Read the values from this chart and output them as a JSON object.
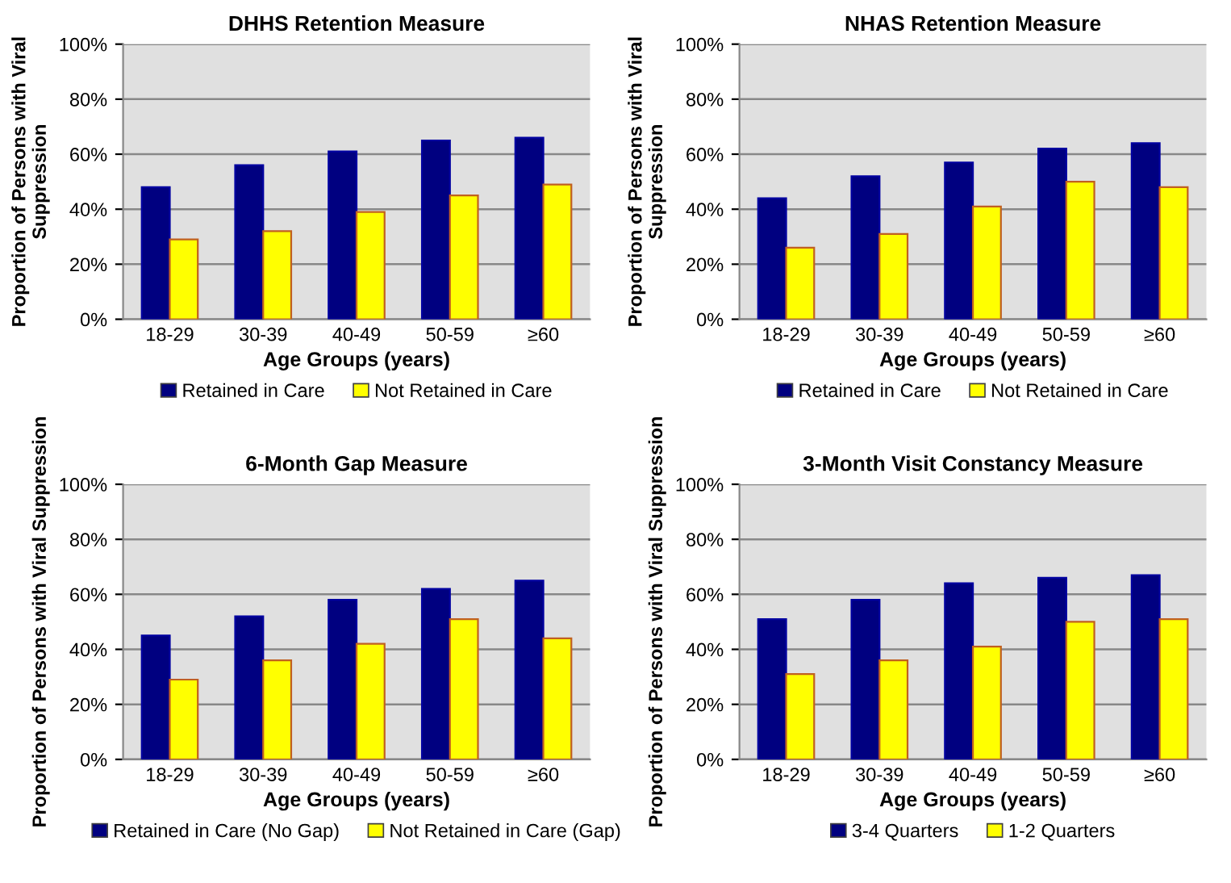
{
  "chart_data": [
    {
      "type": "bar",
      "title": "DHHS Retention Measure",
      "xlabel": "Age Groups (years)",
      "ylabel": "Proportion of Persons with Viral Suppression",
      "categories": [
        "18-29",
        "30-39",
        "40-49",
        "50-59",
        "≥60"
      ],
      "ylim": [
        0,
        100
      ],
      "yticks": [
        {
          "value": 0,
          "label": "0%"
        },
        {
          "value": 20,
          "label": "20%"
        },
        {
          "value": 40,
          "label": "40%"
        },
        {
          "value": 60,
          "label": "60%"
        },
        {
          "value": 80,
          "label": "80%"
        },
        {
          "value": 100,
          "label": "100%"
        }
      ],
      "grid": "y",
      "legend": "bottom",
      "series": [
        {
          "name": "Retained in Care",
          "color": "#000080",
          "values": [
            48,
            56,
            61,
            65,
            66
          ]
        },
        {
          "name": "Not Retained in Care",
          "color": "#ffff00",
          "values": [
            29,
            32,
            39,
            45,
            49
          ]
        }
      ]
    },
    {
      "type": "bar",
      "title": "NHAS Retention Measure",
      "xlabel": "Age Groups (years)",
      "ylabel": "Proportion of Persons with Viral Suppression",
      "categories": [
        "18-29",
        "30-39",
        "40-49",
        "50-59",
        "≥60"
      ],
      "ylim": [
        0,
        100
      ],
      "yticks": [
        {
          "value": 0,
          "label": "0%"
        },
        {
          "value": 20,
          "label": "20%"
        },
        {
          "value": 40,
          "label": "40%"
        },
        {
          "value": 60,
          "label": "60%"
        },
        {
          "value": 80,
          "label": "80%"
        },
        {
          "value": 100,
          "label": "100%"
        }
      ],
      "grid": "y",
      "legend": "bottom",
      "series": [
        {
          "name": "Retained in Care",
          "color": "#000080",
          "values": [
            44,
            52,
            57,
            62,
            64
          ]
        },
        {
          "name": "Not Retained in Care",
          "color": "#ffff00",
          "values": [
            26,
            31,
            41,
            50,
            48
          ]
        }
      ]
    },
    {
      "type": "bar",
      "title": "6-Month Gap Measure",
      "xlabel": "Age Groups (years)",
      "ylabel": "Proportion of Persons with Viral Suppression",
      "categories": [
        "18-29",
        "30-39",
        "40-49",
        "50-59",
        "≥60"
      ],
      "ylim": [
        0,
        100
      ],
      "yticks": [
        {
          "value": 0,
          "label": "0%"
        },
        {
          "value": 20,
          "label": "20%"
        },
        {
          "value": 40,
          "label": "40%"
        },
        {
          "value": 60,
          "label": "60%"
        },
        {
          "value": 80,
          "label": "80%"
        },
        {
          "value": 100,
          "label": "100%"
        }
      ],
      "grid": "y",
      "legend": "bottom",
      "series": [
        {
          "name": "Retained in Care (No Gap)",
          "color": "#000080",
          "values": [
            45,
            52,
            58,
            62,
            65
          ]
        },
        {
          "name": "Not Retained in Care (Gap)",
          "color": "#ffff00",
          "values": [
            29,
            36,
            42,
            51,
            44
          ]
        }
      ]
    },
    {
      "type": "bar",
      "title": "3-Month Visit Constancy Measure",
      "xlabel": "Age Groups (years)",
      "ylabel": "Proportion of Persons with Viral Suppression",
      "categories": [
        "18-29",
        "30-39",
        "40-49",
        "50-59",
        "≥60"
      ],
      "ylim": [
        0,
        100
      ],
      "yticks": [
        {
          "value": 0,
          "label": "0%"
        },
        {
          "value": 20,
          "label": "20%"
        },
        {
          "value": 40,
          "label": "40%"
        },
        {
          "value": 60,
          "label": "60%"
        },
        {
          "value": 80,
          "label": "80%"
        },
        {
          "value": 100,
          "label": "100%"
        }
      ],
      "grid": "y",
      "legend": "bottom",
      "series": [
        {
          "name": "3-4 Quarters",
          "color": "#000080",
          "values": [
            51,
            58,
            64,
            66,
            67
          ]
        },
        {
          "name": "1-2 Quarters",
          "color": "#ffff00",
          "values": [
            31,
            36,
            41,
            50,
            51
          ]
        }
      ]
    }
  ]
}
